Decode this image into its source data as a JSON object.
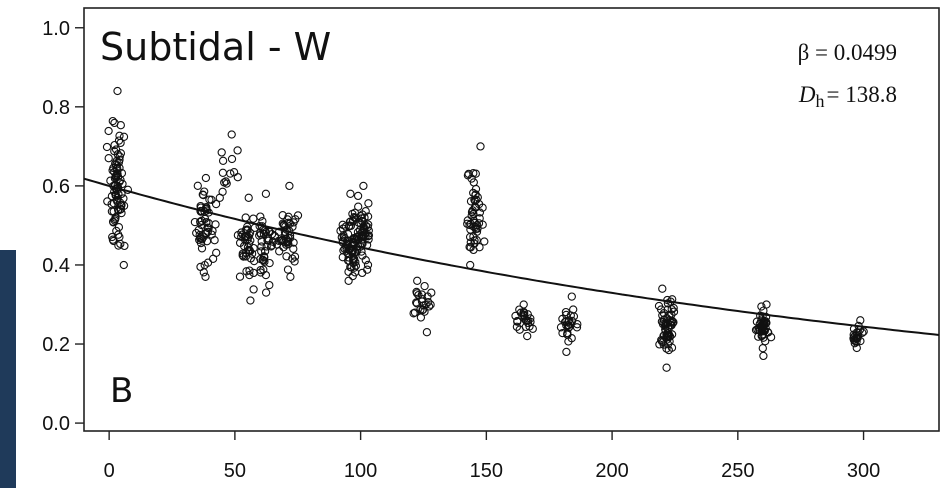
{
  "chart_data": {
    "type": "scatter",
    "panel_title": "Subtidal - W",
    "panel_letter": "B",
    "annotations": {
      "beta": "β = 0.0499",
      "dh_symbol": "D",
      "dh_subscript": "h",
      "dh_value": "= 138.8"
    },
    "xlabel": "",
    "ylabel": "",
    "xlim": [
      -10,
      330
    ],
    "ylim": [
      -0.02,
      1.05
    ],
    "x_ticks": [
      0,
      50,
      100,
      150,
      200,
      250,
      300
    ],
    "x_tick_labels": [
      "0",
      "50",
      "100",
      "150",
      "200",
      "250",
      "300"
    ],
    "y_ticks": [
      0.0,
      0.2,
      0.4,
      0.6,
      0.8,
      1.0
    ],
    "y_tick_labels": [
      "0.0",
      "0.2",
      "0.4",
      "0.6",
      "0.8",
      "1.0"
    ],
    "grid": false,
    "fit_curve": {
      "model": "exponential decay",
      "x_range": [
        -10,
        330
      ],
      "y_at_0": 0.6,
      "rate": 0.003
    },
    "clusters": [
      {
        "x_center": 3,
        "x_spread": 5,
        "y_min": 0.4,
        "y_max": 0.84,
        "y_mean": 0.6,
        "count": 90
      },
      {
        "x_center": 38,
        "x_spread": 6,
        "y_min": 0.37,
        "y_max": 0.62,
        "y_mean": 0.5,
        "count": 55
      },
      {
        "x_center": 47,
        "x_spread": 6,
        "y_min": 0.57,
        "y_max": 0.73,
        "y_mean": 0.64,
        "count": 14
      },
      {
        "x_center": 55,
        "x_spread": 5,
        "y_min": 0.31,
        "y_max": 0.57,
        "y_mean": 0.45,
        "count": 45
      },
      {
        "x_center": 62,
        "x_spread": 5,
        "y_min": 0.33,
        "y_max": 0.58,
        "y_mean": 0.45,
        "count": 40
      },
      {
        "x_center": 71,
        "x_spread": 5,
        "y_min": 0.37,
        "y_max": 0.6,
        "y_mean": 0.47,
        "count": 45
      },
      {
        "x_center": 96,
        "x_spread": 5,
        "y_min": 0.36,
        "y_max": 0.58,
        "y_mean": 0.45,
        "count": 70
      },
      {
        "x_center": 101,
        "x_spread": 4,
        "y_min": 0.38,
        "y_max": 0.6,
        "y_mean": 0.48,
        "count": 50
      },
      {
        "x_center": 124,
        "x_spread": 6,
        "y_min": 0.23,
        "y_max": 0.36,
        "y_mean": 0.3,
        "count": 25
      },
      {
        "x_center": 145,
        "x_spread": 5,
        "y_min": 0.4,
        "y_max": 0.7,
        "y_mean": 0.52,
        "count": 55
      },
      {
        "x_center": 165,
        "x_spread": 6,
        "y_min": 0.22,
        "y_max": 0.3,
        "y_mean": 0.26,
        "count": 25
      },
      {
        "x_center": 183,
        "x_spread": 5,
        "y_min": 0.18,
        "y_max": 0.32,
        "y_mean": 0.25,
        "count": 28
      },
      {
        "x_center": 222,
        "x_spread": 4,
        "y_min": 0.14,
        "y_max": 0.34,
        "y_mean": 0.24,
        "count": 60
      },
      {
        "x_center": 260,
        "x_spread": 4,
        "y_min": 0.17,
        "y_max": 0.3,
        "y_mean": 0.24,
        "count": 45
      },
      {
        "x_center": 298,
        "x_spread": 3,
        "y_min": 0.19,
        "y_max": 0.26,
        "y_mean": 0.22,
        "count": 22
      }
    ]
  },
  "colors": {
    "frame": "#222222",
    "points": "#111111",
    "curve": "#111111",
    "left_bar": "#1f3a5a"
  }
}
